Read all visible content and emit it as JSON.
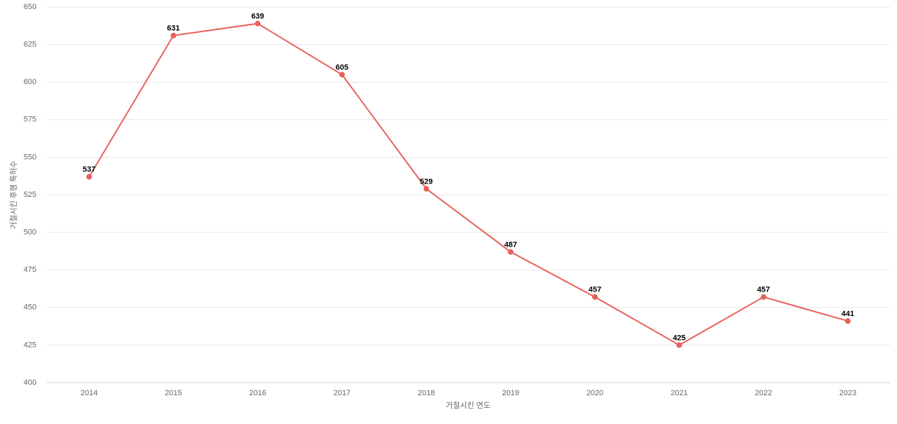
{
  "chart_data": {
    "type": "line",
    "x_label": "거절시킨 연도",
    "y_label": "거절시킨 후행 특허수",
    "categories": [
      "2014",
      "2015",
      "2016",
      "2017",
      "2018",
      "2019",
      "2020",
      "2021",
      "2022",
      "2023"
    ],
    "series": [
      {
        "color": "#e8605c",
        "values": [
          537,
          631,
          639,
          605,
          529,
          487,
          457,
          425,
          457,
          441
        ]
      }
    ],
    "ylim": [
      400,
      650
    ],
    "yticks": [
      400,
      425,
      450,
      475,
      500,
      525,
      550,
      575,
      600,
      625,
      650
    ],
    "grid": true
  }
}
